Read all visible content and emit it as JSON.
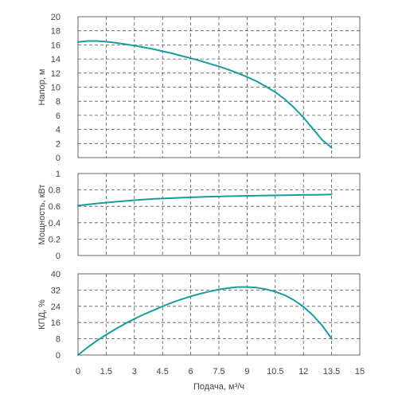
{
  "colors": {
    "curve": "#1a9c9c"
  },
  "chart_data": [
    {
      "type": "line",
      "xlabel": "",
      "ylabel": "Напор, м",
      "xlim": [
        0,
        15
      ],
      "ylim": [
        0,
        20
      ],
      "yticks": [
        "0",
        "2",
        "4",
        "6",
        "8",
        "10",
        "12",
        "14",
        "16",
        "18",
        "20"
      ],
      "grid": true,
      "series": [
        {
          "x": [
            0,
            0.5,
            1,
            1.5,
            2,
            2.5,
            3,
            3.5,
            4,
            4.5,
            5,
            5.5,
            6,
            6.5,
            7,
            7.5,
            8,
            8.5,
            9,
            9.5,
            10,
            10.5,
            11,
            11.5,
            12,
            12.5,
            13,
            13.5
          ],
          "y": [
            16.4,
            16.55,
            16.55,
            16.45,
            16.3,
            16.1,
            15.9,
            15.65,
            15.4,
            15.1,
            14.8,
            14.45,
            14.1,
            13.75,
            13.35,
            12.95,
            12.5,
            12.0,
            11.45,
            10.85,
            10.1,
            9.3,
            8.3,
            7.1,
            5.7,
            4.1,
            2.5,
            1.4
          ]
        }
      ]
    },
    {
      "type": "line",
      "xlabel": "",
      "ylabel": "Мощность, кВт",
      "xlim": [
        0,
        15
      ],
      "ylim": [
        0,
        1
      ],
      "yticks": [
        "0",
        "0.2",
        "0.4",
        "0.6",
        "0.8",
        "1"
      ],
      "grid": true,
      "series": [
        {
          "x": [
            0,
            1,
            2,
            3,
            4,
            5,
            6,
            7,
            8,
            9,
            10,
            11,
            12,
            13,
            13.5
          ],
          "y": [
            0.61,
            0.635,
            0.655,
            0.675,
            0.69,
            0.7,
            0.71,
            0.717,
            0.723,
            0.728,
            0.732,
            0.735,
            0.739,
            0.742,
            0.745
          ]
        }
      ]
    },
    {
      "type": "line",
      "xlabel": "Подача, м³/ч",
      "ylabel": "КПД, %",
      "xlim": [
        0,
        15
      ],
      "ylim": [
        0,
        40
      ],
      "yticks": [
        "0",
        "8",
        "16",
        "24",
        "32",
        "40"
      ],
      "xticks": [
        "0",
        "1.5",
        "3",
        "4.5",
        "6",
        "7.5",
        "9",
        "10.5",
        "12",
        "13.5",
        "15"
      ],
      "grid": true,
      "series": [
        {
          "x": [
            0,
            0.5,
            1,
            1.5,
            2,
            2.5,
            3,
            3.5,
            4,
            4.5,
            5,
            5.5,
            6,
            6.5,
            7,
            7.5,
            8,
            8.5,
            9,
            9.5,
            10,
            10.5,
            11,
            11.5,
            12,
            12.5,
            13,
            13.5
          ],
          "y": [
            0,
            3.7,
            7.0,
            10.0,
            12.8,
            15.4,
            17.8,
            20.0,
            22.0,
            24.0,
            25.8,
            27.4,
            28.9,
            30.2,
            31.3,
            32.3,
            33.0,
            33.5,
            33.5,
            33.2,
            32.4,
            31.2,
            29.5,
            27.0,
            23.8,
            19.6,
            14.5,
            8.0
          ]
        }
      ]
    }
  ]
}
